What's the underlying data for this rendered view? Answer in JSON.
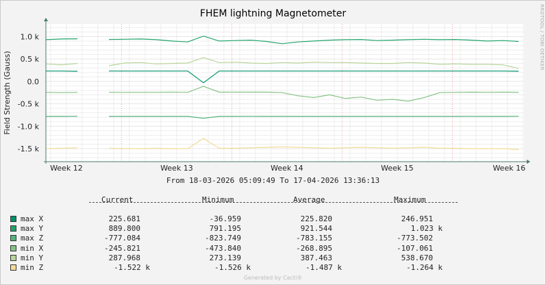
{
  "chart_data": {
    "type": "line",
    "title": "FHEM lightning Magnetometer",
    "ylabel": "Field Strength (Gauss)",
    "xlabel": "",
    "ylim": [
      -1790,
      1280
    ],
    "xlim_days": [
      0,
      30.35
    ],
    "yticks": [
      {
        "v": 1000,
        "label": "1.0 k"
      },
      {
        "v": 500,
        "label": "0.5 k"
      },
      {
        "v": 0,
        "label": "0.0"
      },
      {
        "v": -500,
        "label": "-0.5 k"
      },
      {
        "v": -1000,
        "label": "-1.0 k"
      },
      {
        "v": -1500,
        "label": "-1.5 k"
      }
    ],
    "xticks": [
      {
        "day": 1.3,
        "label": "Week 12"
      },
      {
        "day": 8.3,
        "label": "Week 13"
      },
      {
        "day": 15.3,
        "label": "Week 14"
      },
      {
        "day": 22.3,
        "label": "Week 15"
      },
      {
        "day": 29.4,
        "label": "Week 16"
      }
    ],
    "major_grid_days": [
      4.8,
      11.8,
      18.8,
      25.8
    ],
    "grid": true,
    "x_days": [
      0,
      1,
      2,
      3,
      4,
      5,
      6,
      7,
      8,
      9,
      10,
      11,
      12,
      13,
      14,
      15,
      16,
      17,
      18,
      19,
      20,
      21,
      22,
      23,
      24,
      25,
      26,
      27,
      28,
      29,
      30
    ],
    "series": [
      {
        "name": "max X",
        "color": "#00916A",
        "values": [
          230,
          230,
          225,
          null,
          230,
          230,
          230,
          230,
          230,
          230,
          -30,
          230,
          230,
          230,
          230,
          230,
          230,
          230,
          230,
          230,
          230,
          230,
          230,
          230,
          230,
          230,
          230,
          230,
          230,
          230,
          226
        ]
      },
      {
        "name": "max Y",
        "color": "#20A46C",
        "values": [
          930,
          945,
          950,
          null,
          935,
          940,
          945,
          930,
          900,
          880,
          1010,
          900,
          910,
          920,
          890,
          840,
          880,
          900,
          920,
          930,
          935,
          910,
          920,
          930,
          940,
          930,
          935,
          920,
          900,
          910,
          890
        ]
      },
      {
        "name": "max Z",
        "color": "#55B47E",
        "values": [
          -780,
          -780,
          -778,
          null,
          -780,
          -780,
          -781,
          -780,
          -780,
          -780,
          -822,
          -780,
          -780,
          -779,
          -780,
          -781,
          -780,
          -780,
          -780,
          -780,
          -780,
          -780,
          -781,
          -780,
          -780,
          -780,
          -780,
          -779,
          -780,
          -780,
          -777
        ]
      },
      {
        "name": "min X",
        "color": "#86C286",
        "values": [
          -245,
          -250,
          -245,
          null,
          -245,
          -245,
          -245,
          -245,
          -240,
          -245,
          -110,
          -240,
          -240,
          -240,
          -240,
          -250,
          -320,
          -360,
          -300,
          -380,
          -350,
          -420,
          -400,
          -440,
          -360,
          -250,
          -245,
          -240,
          -245,
          -240,
          -246
        ]
      },
      {
        "name": "min Y",
        "color": "#B8D49A",
        "values": [
          390,
          370,
          400,
          null,
          350,
          410,
          420,
          390,
          400,
          410,
          530,
          420,
          430,
          410,
          400,
          420,
          410,
          430,
          420,
          420,
          410,
          400,
          400,
          420,
          410,
          380,
          390,
          380,
          380,
          370,
          288
        ]
      },
      {
        "name": "min Z",
        "color": "#F3DC98",
        "values": [
          -1500,
          -1490,
          -1480,
          null,
          -1490,
          -1495,
          -1500,
          -1490,
          -1500,
          -1500,
          -1270,
          -1490,
          -1490,
          -1480,
          -1470,
          -1460,
          -1470,
          -1480,
          -1490,
          -1480,
          -1470,
          -1480,
          -1490,
          -1480,
          -1470,
          -1490,
          -1490,
          -1500,
          -1500,
          -1500,
          -1522
        ]
      }
    ]
  },
  "side_text": "RRDTOOL / TOBI OETIKER",
  "range_text": "From 18-03-2026 05:09:49 To 17-04-2026 13:36:13",
  "legend": {
    "headers": [
      "Current",
      "Minimum",
      "Average",
      "Maximum"
    ],
    "rows": [
      {
        "name": "max X",
        "color": "#00916A",
        "current": "225.681",
        "minimum": "-36.959",
        "average": "225.820",
        "maximum": "246.951"
      },
      {
        "name": "max Y",
        "color": "#20A46C",
        "current": "889.800",
        "minimum": "791.195",
        "average": "921.544",
        "maximum": "1.023 k"
      },
      {
        "name": "max Z",
        "color": "#55B47E",
        "current": "-777.084",
        "minimum": "-823.749",
        "average": "-783.155",
        "maximum": "-773.502"
      },
      {
        "name": "min X",
        "color": "#86C286",
        "current": "-245.821",
        "minimum": "-473.840",
        "average": "-268.895",
        "maximum": "-107.061"
      },
      {
        "name": "min Y",
        "color": "#B8D49A",
        "current": "287.968",
        "minimum": "273.139",
        "average": "387.463",
        "maximum": "538.670"
      },
      {
        "name": "min Z",
        "color": "#F3DC98",
        "current": "-1.522 k",
        "minimum": "-1.526 k",
        "average": "-1.487 k",
        "maximum": "-1.264 k"
      }
    ]
  },
  "footer": "Generated by Cacti®"
}
